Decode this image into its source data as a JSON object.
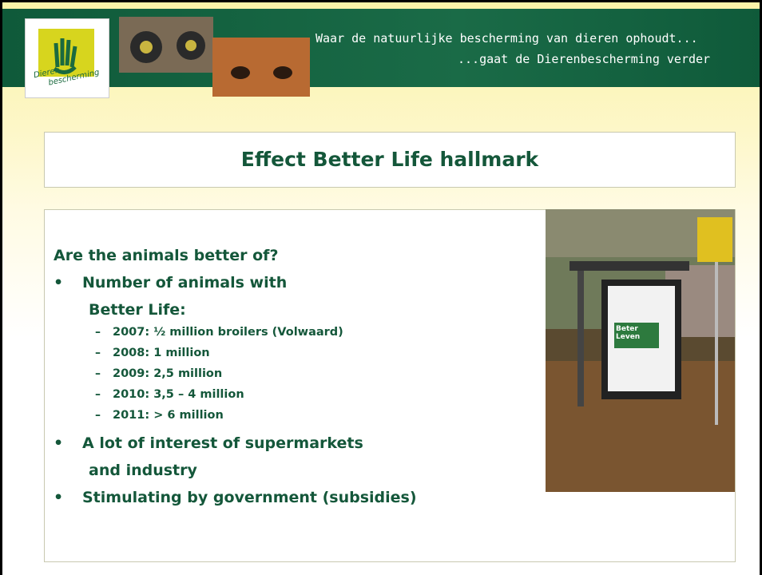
{
  "header": {
    "logo": [
      "Dieren",
      "bescherming"
    ],
    "tagline": [
      "Waar de natuurlijke bescherming van dieren ophoudt...",
      "...gaat de Dierenbescherming verder"
    ]
  },
  "title": "Effect Better Life hallmark",
  "content": {
    "heading": "Are the animals better of?",
    "bullets": [
      {
        "lines": [
          "Number of animals with",
          "Better Life:"
        ],
        "sub": [
          "2007: ½ million broilers (Volwaard)",
          "2008: 1 million",
          "2009: 2,5 million",
          "2010: 3,5 – 4 million",
          "2011: > 6 million"
        ]
      },
      {
        "lines": [
          "A lot of interest of supermarkets",
          "and industry"
        ],
        "sub": []
      },
      {
        "lines": [
          "Stimulating by government (subsidies)"
        ],
        "sub": []
      }
    ]
  },
  "photo": {
    "sign": [
      "Beter",
      "Leven"
    ]
  }
}
